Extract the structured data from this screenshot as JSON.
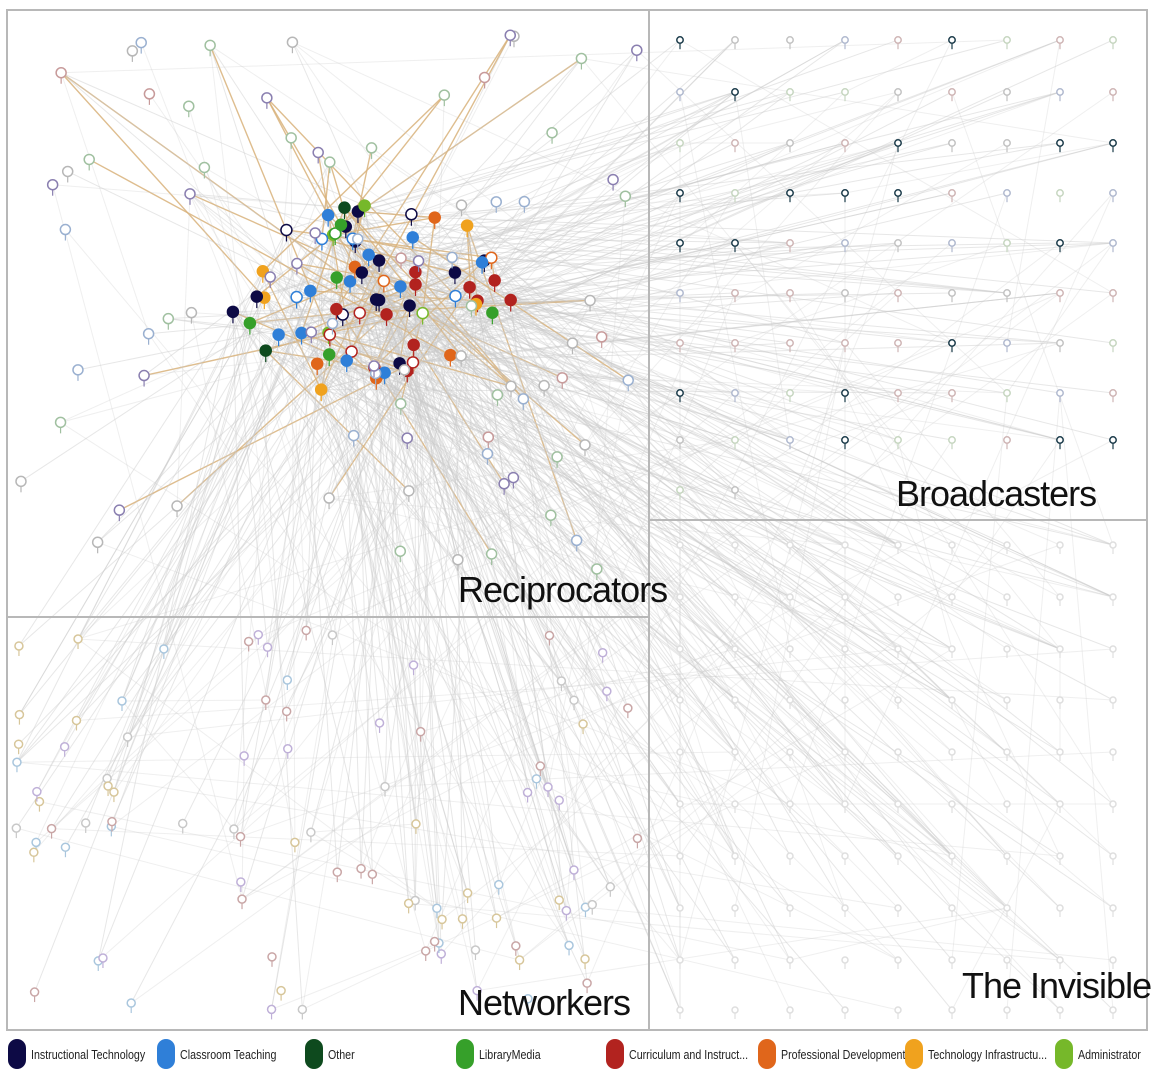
{
  "quadrants": {
    "reciprocators": "Reciprocators",
    "broadcasters": "Broadcasters",
    "networkers": "Networkers",
    "invisible": "The Invisible"
  },
  "legend": [
    {
      "label": "Instructional Technology",
      "color": "#0d0a45"
    },
    {
      "label": "Classroom Teaching",
      "color": "#2f7fd8"
    },
    {
      "label": "Other",
      "color": "#0e4a1e"
    },
    {
      "label": "LibraryMedia",
      "color": "#36a02a"
    },
    {
      "label": "Curriculum and Instruct...",
      "color": "#b2231f"
    },
    {
      "label": "Professional Development",
      "color": "#e0661b"
    },
    {
      "label": "Technology Infrastructu...",
      "color": "#f0a21e"
    },
    {
      "label": "Administrator",
      "color": "#76b82a"
    }
  ],
  "colors": {
    "frame": "#b8b8b8",
    "edge_gray": "#c9c9c9",
    "edge_tan": "#d8b27a"
  }
}
